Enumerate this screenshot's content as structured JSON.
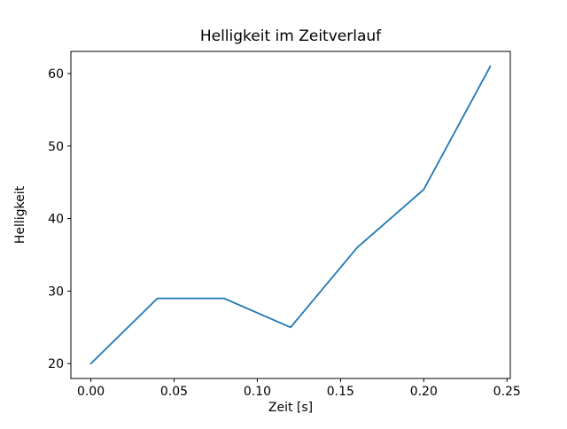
{
  "chart_data": {
    "type": "line",
    "title": "Helligkeit im Zeitverlauf",
    "xlabel": "Zeit [s]",
    "ylabel": "Helligkeit",
    "x": [
      0.0,
      0.04,
      0.08,
      0.12,
      0.16,
      0.2,
      0.24
    ],
    "y": [
      20,
      29,
      29,
      25,
      36,
      44,
      61
    ],
    "xlim": [
      -0.012,
      0.252
    ],
    "ylim": [
      17.95,
      63.05
    ],
    "xticks": [
      0.0,
      0.05,
      0.1,
      0.15,
      0.2,
      0.25
    ],
    "xtick_labels": [
      "0.00",
      "0.05",
      "0.10",
      "0.15",
      "0.20",
      "0.25"
    ],
    "yticks": [
      20,
      30,
      40,
      50,
      60
    ],
    "ytick_labels": [
      "20",
      "30",
      "40",
      "50",
      "60"
    ],
    "line_color": "#1f77b4",
    "line_width": 1.8,
    "grid": false,
    "legend_position": "none",
    "background_color": "#ffffff",
    "axes_edge_color": "#000000"
  }
}
